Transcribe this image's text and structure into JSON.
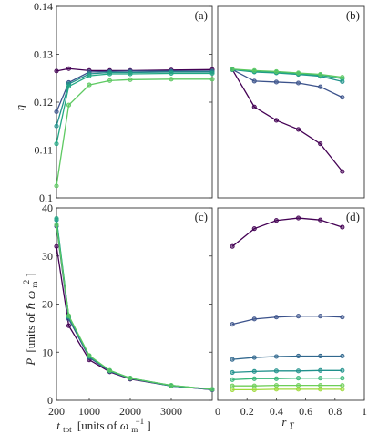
{
  "chart_data": [
    {
      "id": "a",
      "type": "line",
      "panel_label": "(a)",
      "ylabel": "η",
      "xlabel": "",
      "xlim": [
        200,
        4000
      ],
      "ylim": [
        0.1,
        0.14
      ],
      "xticks": [],
      "yticks": [
        {
          "v": 0.1,
          "label": "0.1"
        },
        {
          "v": 0.11,
          "label": "0.11"
        },
        {
          "v": 0.12,
          "label": "0.12"
        },
        {
          "v": 0.13,
          "label": "0.13"
        },
        {
          "v": 0.14,
          "label": "0.14"
        }
      ],
      "x": [
        200,
        500,
        1000,
        1500,
        2000,
        3000,
        4000
      ],
      "series": [
        {
          "color": "#440154",
          "values": [
            0.1265,
            0.127,
            0.1266,
            0.1266,
            0.1266,
            0.1267,
            0.1268
          ]
        },
        {
          "color": "#3b528b",
          "values": [
            0.118,
            0.1241,
            0.1263,
            0.1264,
            0.1265,
            0.1265,
            0.1265
          ]
        },
        {
          "color": "#21918c",
          "values": [
            0.115,
            0.1238,
            0.1259,
            0.1262,
            0.1262,
            0.1263,
            0.1263
          ]
        },
        {
          "color": "#22a884",
          "values": [
            0.1113,
            0.1233,
            0.1255,
            0.1259,
            0.1259,
            0.126,
            0.126
          ]
        },
        {
          "color": "#5ec962",
          "values": [
            0.1025,
            0.1194,
            0.1236,
            0.1245,
            0.1247,
            0.1248,
            0.1248
          ]
        }
      ]
    },
    {
      "id": "b",
      "type": "line",
      "panel_label": "(b)",
      "ylabel": "",
      "xlabel": "",
      "xlim": [
        0,
        1
      ],
      "ylim": [
        0.1,
        0.14
      ],
      "xticks": [],
      "yticks": [],
      "x": [
        0.1,
        0.25,
        0.4,
        0.55,
        0.7,
        0.85
      ],
      "series": [
        {
          "color": "#440154",
          "values": [
            0.1268,
            0.119,
            0.1162,
            0.1143,
            0.1113,
            0.1055
          ]
        },
        {
          "color": "#3b528b",
          "values": [
            0.1268,
            0.1244,
            0.1242,
            0.124,
            0.1232,
            0.121
          ]
        },
        {
          "color": "#21918c",
          "values": [
            0.1268,
            0.1263,
            0.1261,
            0.1258,
            0.1254,
            0.1243
          ]
        },
        {
          "color": "#22a884",
          "values": [
            0.1268,
            0.1264,
            0.1262,
            0.1259,
            0.1256,
            0.1249
          ]
        },
        {
          "color": "#5ec962",
          "values": [
            0.1269,
            0.1266,
            0.1264,
            0.1261,
            0.1258,
            0.1252
          ]
        }
      ]
    },
    {
      "id": "c",
      "type": "line",
      "panel_label": "(c)",
      "ylabel": "P [units of ℏω_m²]",
      "xlabel": "t_tot [units of ω_m⁻¹]",
      "xlim": [
        200,
        4000
      ],
      "ylim": [
        0,
        40
      ],
      "xticks": [
        {
          "v": 200,
          "label": "200"
        },
        {
          "v": 1000,
          "label": "1000"
        },
        {
          "v": 2000,
          "label": "2000"
        },
        {
          "v": 3000,
          "label": "3000"
        }
      ],
      "yticks": [
        {
          "v": 0,
          "label": "0"
        },
        {
          "v": 10,
          "label": "10"
        },
        {
          "v": 20,
          "label": "20"
        },
        {
          "v": 30,
          "label": "30"
        },
        {
          "v": 40,
          "label": "40"
        }
      ],
      "x": [
        200,
        500,
        1000,
        1500,
        2000,
        3000,
        4000
      ],
      "series": [
        {
          "color": "#440154",
          "values": [
            32,
            15.5,
            8.4,
            5.9,
            4.4,
            3.0,
            2.2
          ]
        },
        {
          "color": "#3b528b",
          "values": [
            36.2,
            16.9,
            8.9,
            6.0,
            4.5,
            3.0,
            2.2
          ]
        },
        {
          "color": "#21918c",
          "values": [
            37.5,
            17.3,
            9.1,
            6.1,
            4.6,
            3.0,
            2.3
          ]
        },
        {
          "color": "#22a884",
          "values": [
            37.8,
            17.5,
            9.2,
            6.2,
            4.6,
            3.1,
            2.3
          ]
        },
        {
          "color": "#5ec962",
          "values": [
            36.5,
            17.6,
            9.3,
            6.2,
            4.6,
            3.1,
            2.3
          ]
        }
      ]
    },
    {
      "id": "d",
      "type": "line",
      "panel_label": "(d)",
      "ylabel": "",
      "xlabel": "r_T",
      "xlim": [
        0,
        1
      ],
      "ylim": [
        0,
        40
      ],
      "xticks": [
        {
          "v": 0,
          "label": "0"
        },
        {
          "v": 0.2,
          "label": "0.2"
        },
        {
          "v": 0.4,
          "label": "0.4"
        },
        {
          "v": 0.6,
          "label": "0.6"
        },
        {
          "v": 0.8,
          "label": "0.8"
        },
        {
          "v": 1,
          "label": "1"
        }
      ],
      "yticks": [],
      "x": [
        0.1,
        0.25,
        0.4,
        0.55,
        0.7,
        0.85
      ],
      "series": [
        {
          "color": "#440154",
          "values": [
            32,
            35.7,
            37.4,
            37.9,
            37.5,
            36.0
          ]
        },
        {
          "color": "#3b528b",
          "values": [
            15.8,
            16.9,
            17.3,
            17.5,
            17.5,
            17.3
          ]
        },
        {
          "color": "#31688e",
          "values": [
            8.5,
            8.9,
            9.1,
            9.2,
            9.2,
            9.2
          ]
        },
        {
          "color": "#21918c",
          "values": [
            5.8,
            6.0,
            6.1,
            6.1,
            6.2,
            6.2
          ]
        },
        {
          "color": "#35b779",
          "values": [
            4.3,
            4.5,
            4.5,
            4.6,
            4.6,
            4.6
          ]
        },
        {
          "color": "#6ece58",
          "values": [
            3.0,
            3.0,
            3.1,
            3.1,
            3.1,
            3.1
          ]
        },
        {
          "color": "#9fda3a",
          "values": [
            2.2,
            2.2,
            2.3,
            2.3,
            2.3,
            2.3
          ]
        }
      ]
    }
  ],
  "labels": {
    "eta": "η",
    "P_sym": "P",
    "P_bracket_open": "[units of ",
    "P_hbar": "ℏ",
    "P_omega": "ω",
    "P_sub": "m",
    "P_sup": "2",
    "P_bracket_close": "]",
    "t_sym": "t",
    "t_sub": "tot",
    "t_bracket_open": "[units of ",
    "t_omega": "ω",
    "t_sub2": "m",
    "t_sup": "−1",
    "t_bracket_close": "]",
    "r_sym": "r",
    "r_sub": "T"
  }
}
